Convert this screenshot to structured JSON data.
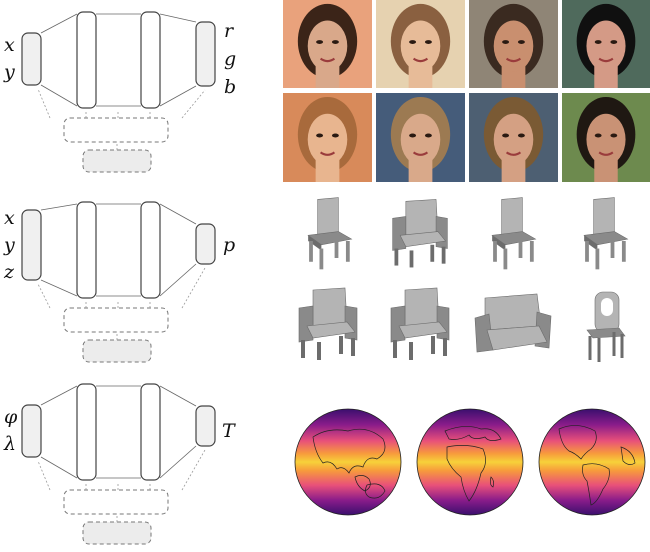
{
  "panels": [
    {
      "id": "image",
      "inputs": [
        "x",
        "y"
      ],
      "outputs": [
        "r",
        "g",
        "b"
      ]
    },
    {
      "id": "shape",
      "inputs": [
        "x",
        "y",
        "z"
      ],
      "outputs": [
        "p"
      ]
    },
    {
      "id": "climate",
      "inputs": [
        "φ",
        "λ"
      ],
      "outputs": [
        "T"
      ]
    }
  ],
  "faces": [
    {
      "bg": "#e9a27c",
      "hair": "#3b2418",
      "skin": "#d9a88a"
    },
    {
      "bg": "#e6d2b0",
      "hair": "#8a6040",
      "skin": "#e7bb98"
    },
    {
      "bg": "#8f8576",
      "hair": "#3a2a20",
      "skin": "#c98f6f"
    },
    {
      "bg": "#4f6a5c",
      "hair": "#101010",
      "skin": "#d49a86"
    },
    {
      "bg": "#d88a5a",
      "hair": "#a86a3c",
      "skin": "#e8b58f"
    },
    {
      "bg": "#455c7a",
      "hair": "#9c7a52",
      "skin": "#d9a98a"
    },
    {
      "bg": "#4d5f72",
      "hair": "#7a5a34",
      "skin": "#d4a083"
    },
    {
      "bg": "#6d8a4e",
      "hair": "#1f1812",
      "skin": "#c99275"
    }
  ],
  "chairs": [
    "chair",
    "armchair",
    "chair",
    "chair",
    "armchair",
    "armchair",
    "sofa-chair",
    "ornate-chair"
  ],
  "globes": [
    "asia-view",
    "africa-view",
    "americas-view"
  ],
  "colors": {
    "line": "#666666",
    "box_fill": "#f0f0f0",
    "dashed": "#777777",
    "globe_hot": "#f7d13a",
    "globe_cold": "#3a0f6e"
  }
}
